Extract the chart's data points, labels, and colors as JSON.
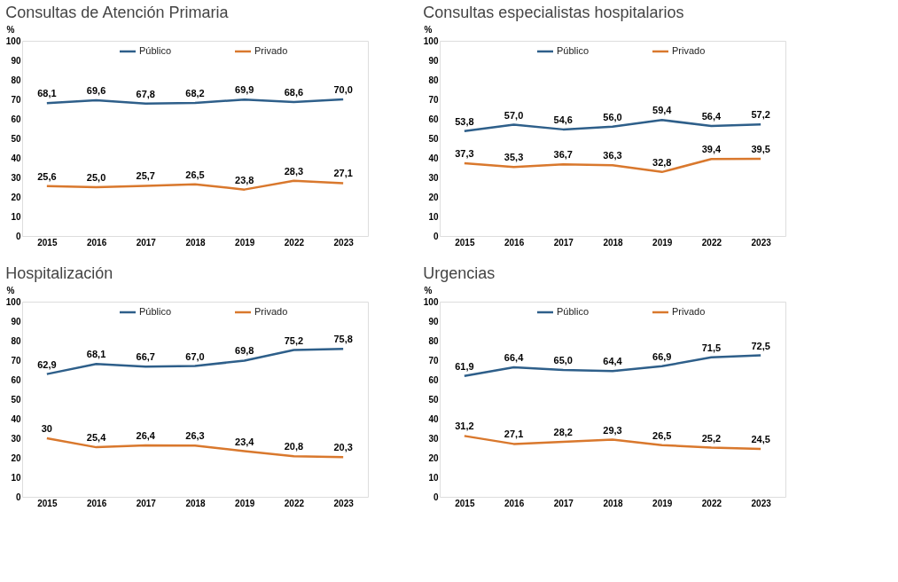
{
  "chart_data": [
    {
      "type": "line",
      "title": "Consultas de Atención Primaria",
      "ylabel": "%",
      "categories": [
        "2015",
        "2016",
        "2017",
        "2018",
        "2019",
        "2022",
        "2023"
      ],
      "ylim": [
        0,
        100
      ],
      "yticks": [
        0,
        10,
        20,
        30,
        40,
        50,
        60,
        70,
        80,
        90,
        100
      ],
      "grid": false,
      "legend": "top",
      "series": [
        {
          "name": "Público",
          "color": "#2e5f8a",
          "values": [
            68.1,
            69.6,
            67.8,
            68.2,
            69.9,
            68.6,
            70.0
          ],
          "value_labels": [
            "68,1",
            "69,6",
            "67,8",
            "68,2",
            "69,9",
            "68,6",
            "70,0"
          ]
        },
        {
          "name": "Privado",
          "color": "#d9782d",
          "values": [
            25.6,
            25.0,
            25.7,
            26.5,
            23.8,
            28.3,
            27.1
          ],
          "value_labels": [
            "25,6",
            "25,0",
            "25,7",
            "26,5",
            "23,8",
            "28,3",
            "27,1"
          ]
        }
      ]
    },
    {
      "type": "line",
      "title": "Consultas especialistas hospitalarios",
      "ylabel": "%",
      "categories": [
        "2015",
        "2016",
        "2017",
        "2018",
        "2019",
        "2022",
        "2023"
      ],
      "ylim": [
        0,
        100
      ],
      "yticks": [
        0,
        10,
        20,
        30,
        40,
        50,
        60,
        70,
        80,
        90,
        100
      ],
      "grid": false,
      "legend": "top",
      "series": [
        {
          "name": "Público",
          "color": "#2e5f8a",
          "values": [
            53.8,
            57.0,
            54.6,
            56.0,
            59.4,
            56.4,
            57.2
          ],
          "value_labels": [
            "53,8",
            "57,0",
            "54,6",
            "56,0",
            "59,4",
            "56,4",
            "57,2"
          ]
        },
        {
          "name": "Privado",
          "color": "#d9782d",
          "values": [
            37.3,
            35.3,
            36.7,
            36.3,
            32.8,
            39.4,
            39.5
          ],
          "value_labels": [
            "37,3",
            "35,3",
            "36,7",
            "36,3",
            "32,8",
            "39,4",
            "39,5"
          ]
        }
      ]
    },
    {
      "type": "line",
      "title": "Hospitalización",
      "ylabel": "%",
      "categories": [
        "2015",
        "2016",
        "2017",
        "2018",
        "2019",
        "2022",
        "2023"
      ],
      "ylim": [
        0,
        100
      ],
      "yticks": [
        0,
        10,
        20,
        30,
        40,
        50,
        60,
        70,
        80,
        90,
        100
      ],
      "grid": false,
      "legend": "top",
      "series": [
        {
          "name": "Público",
          "color": "#2e5f8a",
          "values": [
            62.9,
            68.1,
            66.7,
            67.0,
            69.8,
            75.2,
            75.8
          ],
          "value_labels": [
            "62,9",
            "68,1",
            "66,7",
            "67,0",
            "69,8",
            "75,2",
            "75,8"
          ]
        },
        {
          "name": "Privado",
          "color": "#d9782d",
          "values": [
            30,
            25.4,
            26.4,
            26.3,
            23.4,
            20.8,
            20.3
          ],
          "value_labels": [
            "30",
            "25,4",
            "26,4",
            "26,3",
            "23,4",
            "20,8",
            "20,3"
          ]
        }
      ]
    },
    {
      "type": "line",
      "title": "Urgencias",
      "ylabel": "%",
      "categories": [
        "2015",
        "2016",
        "2017",
        "2018",
        "2019",
        "2022",
        "2023"
      ],
      "ylim": [
        0,
        100
      ],
      "yticks": [
        0,
        10,
        20,
        30,
        40,
        50,
        60,
        70,
        80,
        90,
        100
      ],
      "grid": false,
      "legend": "top",
      "series": [
        {
          "name": "Público",
          "color": "#2e5f8a",
          "values": [
            61.9,
            66.4,
            65.0,
            64.4,
            66.9,
            71.5,
            72.5
          ],
          "value_labels": [
            "61,9",
            "66,4",
            "65,0",
            "64,4",
            "66,9",
            "71,5",
            "72,5"
          ]
        },
        {
          "name": "Privado",
          "color": "#d9782d",
          "values": [
            31.2,
            27.1,
            28.2,
            29.3,
            26.5,
            25.2,
            24.5
          ],
          "value_labels": [
            "31,2",
            "27,1",
            "28,2",
            "29,3",
            "26,5",
            "25,2",
            "24,5"
          ]
        }
      ]
    }
  ]
}
